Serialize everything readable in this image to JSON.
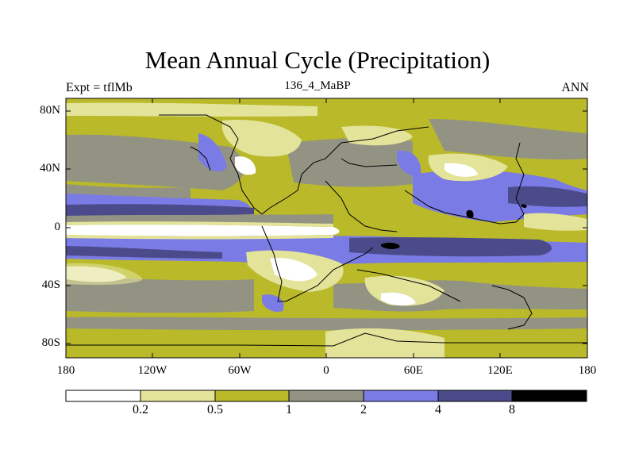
{
  "title": "Mean Annual Cycle (Precipitation)",
  "left_label": "Expt = tflMb",
  "center_label": "136_4_MaBP",
  "right_label": "ANN",
  "lat_ticks": [
    "80N",
    "40N",
    "0",
    "40S",
    "80S"
  ],
  "lon_ticks": [
    "180",
    "120W",
    "60W",
    "0",
    "60E",
    "120E",
    "180"
  ],
  "colorbar": {
    "labels": [
      "0.2",
      "0.5",
      "1",
      "2",
      "4",
      "8"
    ],
    "colors": [
      "#ffffff",
      "#e3e39a",
      "#b9b92a",
      "#939384",
      "#7b7be6",
      "#4b4b8c",
      "#000000"
    ]
  },
  "colors": {
    "background_fill": "#b9b92a",
    "coast": "#000000"
  }
}
